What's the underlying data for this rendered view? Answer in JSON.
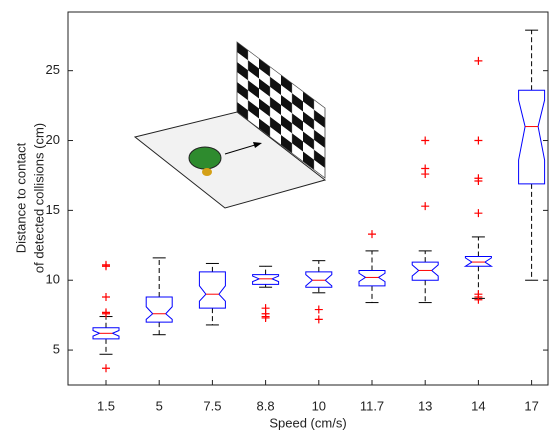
{
  "chart_data": {
    "type": "box",
    "xlabel": "Speed (cm/s)",
    "ylabel": [
      "Distance to contact",
      "of detected collisions (cm)"
    ],
    "categories": [
      "1.5",
      "5",
      "7.5",
      "8.8",
      "10",
      "11.7",
      "13",
      "14",
      "17"
    ],
    "box_color": "#0000ff",
    "median_color": "#ff0000",
    "whisker_color": "#000000",
    "outlier_color": "#ff0000",
    "notch": true,
    "boxes": [
      {
        "whisker_low": 4.7,
        "q1": 5.8,
        "notch_low": 6.0,
        "median": 6.2,
        "notch_high": 6.4,
        "q3": 6.6,
        "whisker_high": 7.4,
        "outliers": [
          3.7,
          7.6,
          7.7,
          8.8,
          11.0,
          11.1
        ]
      },
      {
        "whisker_low": 6.1,
        "q1": 7.0,
        "notch_low": 7.2,
        "median": 7.6,
        "notch_high": 8.1,
        "q3": 8.8,
        "whisker_high": 11.6,
        "outliers": []
      },
      {
        "whisker_low": 6.8,
        "q1": 8.0,
        "notch_low": 8.5,
        "median": 9.0,
        "notch_high": 9.6,
        "q3": 10.6,
        "whisker_high": 11.2,
        "outliers": []
      },
      {
        "whisker_low": 9.5,
        "q1": 9.7,
        "notch_low": 9.9,
        "median": 10.1,
        "notch_high": 10.3,
        "q3": 10.4,
        "whisker_high": 11.0,
        "outliers": [
          8.0,
          7.6,
          7.4,
          7.3
        ]
      },
      {
        "whisker_low": 9.1,
        "q1": 9.5,
        "notch_low": 9.6,
        "median": 10.0,
        "notch_high": 10.4,
        "q3": 10.6,
        "whisker_high": 11.4,
        "outliers": [
          7.9,
          7.2
        ]
      },
      {
        "whisker_low": 8.4,
        "q1": 9.6,
        "notch_low": 9.9,
        "median": 10.2,
        "notch_high": 10.5,
        "q3": 10.7,
        "whisker_high": 12.1,
        "outliers": [
          13.3
        ]
      },
      {
        "whisker_low": 8.4,
        "q1": 10.0,
        "notch_low": 10.3,
        "median": 10.7,
        "notch_high": 11.1,
        "q3": 11.3,
        "whisker_high": 12.1,
        "outliers": [
          15.3,
          17.6,
          18.0,
          20.0
        ]
      },
      {
        "whisker_low": 8.7,
        "q1": 11.0,
        "notch_low": 11.0,
        "median": 11.3,
        "notch_high": 11.6,
        "q3": 11.7,
        "whisker_high": 13.1,
        "outliers": [
          25.7,
          20.0,
          17.3,
          17.1,
          14.8,
          9.0,
          8.8,
          8.6
        ]
      },
      {
        "whisker_low": 10.0,
        "q1": 16.9,
        "notch_low": 18.6,
        "median": 21.0,
        "notch_high": 22.9,
        "q3": 23.6,
        "whisker_high": 27.9,
        "outliers": []
      }
    ],
    "ylim": [
      2.5,
      29.2
    ],
    "yticks": [
      5,
      10,
      15,
      20,
      25
    ]
  }
}
